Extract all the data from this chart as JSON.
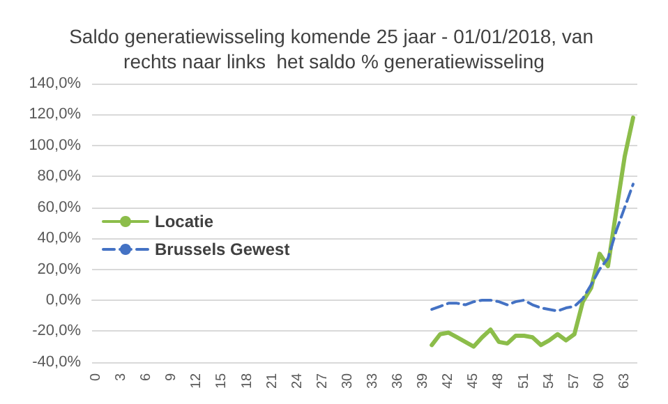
{
  "chart_data": {
    "type": "line",
    "title": "Saldo generatiewisseling komende 25 jaar - 01/01/2018, van rechts naar links  het saldo % generatiewisseling",
    "categories": [
      "0",
      null,
      null,
      "3",
      null,
      null,
      "6",
      null,
      null,
      "9",
      null,
      null,
      "12",
      null,
      null,
      "15",
      null,
      null,
      "18",
      null,
      null,
      "21",
      null,
      null,
      "24",
      null,
      null,
      "27",
      null,
      null,
      "30",
      null,
      null,
      "33",
      null,
      null,
      "36",
      null,
      null,
      "39",
      null,
      null,
      "42",
      null,
      null,
      "45",
      null,
      null,
      "48",
      null,
      null,
      "51",
      null,
      null,
      "54",
      null,
      null,
      "57",
      null,
      null,
      "60",
      null,
      null,
      "63",
      null
    ],
    "series": [
      {
        "name": "Locatie",
        "color": "#8cbd4a",
        "line_style": "solid",
        "values": [
          null,
          null,
          null,
          null,
          null,
          null,
          null,
          null,
          null,
          null,
          null,
          null,
          null,
          null,
          null,
          null,
          null,
          null,
          null,
          null,
          null,
          null,
          null,
          null,
          null,
          null,
          null,
          null,
          null,
          null,
          null,
          null,
          null,
          null,
          null,
          null,
          null,
          null,
          null,
          null,
          -29,
          -22,
          -21,
          -24,
          -27,
          -30,
          -24,
          -19,
          -27,
          -28,
          -23,
          -23,
          -24,
          -29,
          -26,
          -22,
          -26,
          -22,
          -1,
          8,
          30,
          22,
          58,
          93,
          118
        ]
      },
      {
        "name": "Brussels Gewest",
        "color": "#4472c4",
        "line_style": "dashed",
        "values": [
          null,
          null,
          null,
          null,
          null,
          null,
          null,
          null,
          null,
          null,
          null,
          null,
          null,
          null,
          null,
          null,
          null,
          null,
          null,
          null,
          null,
          null,
          null,
          null,
          null,
          null,
          null,
          null,
          null,
          null,
          null,
          null,
          null,
          null,
          null,
          null,
          null,
          null,
          null,
          null,
          -6,
          -4,
          -2,
          -2,
          -3,
          -1,
          0,
          0,
          -1,
          -3,
          -1,
          0,
          -3,
          -5,
          -6,
          -7,
          -5,
          -4,
          1,
          10,
          20,
          27,
          45,
          60,
          75
        ]
      }
    ],
    "ylim": [
      -40,
      140
    ],
    "yticks": [
      {
        "value": -40,
        "label": "-40,0%"
      },
      {
        "value": -20,
        "label": "-20,0%"
      },
      {
        "value": 0,
        "label": "0,0%"
      },
      {
        "value": 20,
        "label": "20,0%"
      },
      {
        "value": 40,
        "label": "40,0%"
      },
      {
        "value": 60,
        "label": "60,0%"
      },
      {
        "value": 80,
        "label": "80,0%"
      },
      {
        "value": 100,
        "label": "100,0%"
      },
      {
        "value": 120,
        "label": "120,0%"
      },
      {
        "value": 140,
        "label": "140,0%"
      }
    ],
    "grid": "y",
    "legend": "left",
    "marker": "none"
  }
}
